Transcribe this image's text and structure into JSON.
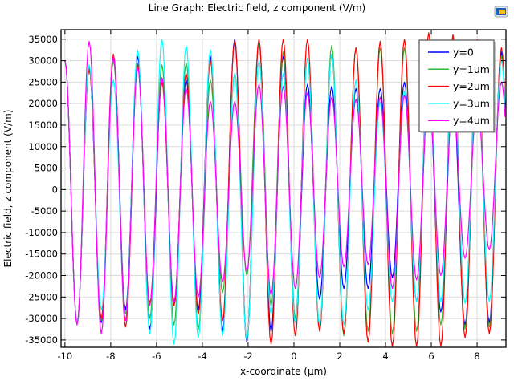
{
  "chart_data": {
    "type": "line",
    "title": "Line Graph: Electric field, z component (V/m)",
    "xlabel": "x-coordinate (µm)",
    "ylabel": "Electric field, z component (V/m)",
    "xlim": [
      -10.17,
      9.26
    ],
    "ylim": [
      -36700,
      37200
    ],
    "grid": true,
    "legend_position": "top-right",
    "x_ticks": [
      -10,
      -8,
      -6,
      -4,
      -2,
      0,
      2,
      4,
      6,
      8
    ],
    "x_tick_labels": [
      "-10",
      "-8",
      "-6",
      "-4",
      "-2",
      "0",
      "2",
      "4",
      "6",
      "8"
    ],
    "y_ticks": [
      -35000,
      -30000,
      -25000,
      -20000,
      -15000,
      -10000,
      -5000,
      0,
      5000,
      10000,
      15000,
      20000,
      25000,
      30000,
      35000
    ],
    "y_tick_labels": [
      "-35000",
      "-30000",
      "-25000",
      "-20000",
      "-15000",
      "-10000",
      "-5000",
      "0",
      "5000",
      "10000",
      "15000",
      "20000",
      "25000",
      "30000",
      "35000"
    ],
    "oscillation": {
      "first_peak_x": -10.0,
      "period": 1.059
    },
    "series": [
      {
        "name": "y=0",
        "color": "#0000ff",
        "maxima": [
          30000,
          28500,
          30500,
          31000,
          26000,
          25500,
          31000,
          35000,
          34500,
          31000,
          24500,
          24000,
          23500,
          23500,
          25000,
          24000,
          22500,
          30000,
          32000
        ],
        "minima": [
          -31000,
          -31000,
          -28000,
          -32500,
          -27000,
          -28000,
          -33000,
          -35500,
          -33000,
          -30000,
          -25500,
          -23000,
          -23000,
          -20500,
          -26000,
          -28500,
          -31500,
          -31000
        ]
      },
      {
        "name": "y=1um",
        "color": "#2db83d",
        "maxima": [
          30000,
          28000,
          30000,
          29500,
          29000,
          29500,
          25500,
          27000,
          34000,
          32000,
          30500,
          33500,
          33000,
          33000,
          33000,
          31000,
          29000,
          29000,
          31000
        ],
        "minima": [
          -31000,
          -30500,
          -29000,
          -30000,
          -31500,
          -32500,
          -24000,
          -20000,
          -27000,
          -30000,
          -32500,
          -34000,
          -33000,
          -33500,
          -33000,
          -31500,
          -32500,
          -32000
        ]
      },
      {
        "name": "y=2um",
        "color": "#ff0000",
        "maxima": [
          30000,
          28000,
          31500,
          29000,
          25000,
          27000,
          30000,
          34500,
          35000,
          35000,
          35000,
          31500,
          33000,
          34500,
          35000,
          36500,
          36000,
          35000,
          33000
        ],
        "minima": [
          -31000,
          -30000,
          -32000,
          -26500,
          -27000,
          -29000,
          -30500,
          -35000,
          -36000,
          -34000,
          -33000,
          -33500,
          -35500,
          -36500,
          -36500,
          -36500,
          -34500,
          -33500
        ]
      },
      {
        "name": "y=3um",
        "color": "#00ffff",
        "maxima": [
          30000,
          29000,
          25500,
          32500,
          35000,
          33500,
          32500,
          27000,
          30000,
          27000,
          30500,
          31500,
          25500,
          20500,
          23000,
          30000,
          30000,
          28000,
          30000
        ],
        "minima": [
          -31000,
          -28000,
          -30500,
          -33500,
          -36000,
          -34500,
          -34000,
          -35000,
          -29000,
          -31000,
          -31500,
          -31500,
          -28000,
          -26000,
          -26000,
          -26000,
          -26500,
          -26000
        ]
      },
      {
        "name": "y=4um",
        "color": "#ff00ff",
        "maxima": [
          30000,
          34500,
          31000,
          28500,
          26000,
          23500,
          20500,
          20500,
          24500,
          24000,
          22500,
          21500,
          21000,
          21500,
          22000,
          22000,
          20000,
          20000,
          25000
        ],
        "minima": [
          -31500,
          -33500,
          -30500,
          -27000,
          -26000,
          -25000,
          -21500,
          -19000,
          -24500,
          -23000,
          -20500,
          -18000,
          -17500,
          -23000,
          -21000,
          -20000,
          -16000,
          -14000
        ]
      }
    ]
  },
  "header": {
    "app_icon": "comsol-graphics-icon"
  }
}
